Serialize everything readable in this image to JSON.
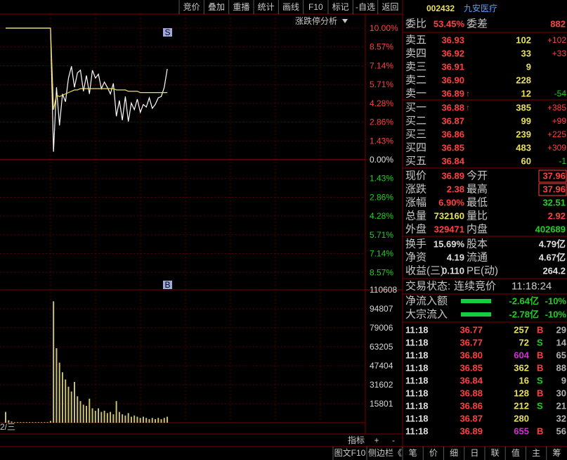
{
  "toolbar": [
    "竞价",
    "叠加",
    "重播",
    "统计",
    "画线",
    "F10",
    "标记",
    "-自选",
    "返回"
  ],
  "chart_data": [
    {
      "type": "line",
      "annotation": "涨跌停分析",
      "marker": "S",
      "ylim": [
        -10,
        10
      ],
      "grid": true,
      "yticks": [
        {
          "value": 10,
          "label": "10.00%"
        },
        {
          "value": 8.57,
          "label": "8.57%"
        },
        {
          "value": 7.14,
          "label": "7.14%"
        },
        {
          "value": 5.71,
          "label": "5.71%"
        },
        {
          "value": 4.28,
          "label": "4.28%"
        },
        {
          "value": 2.86,
          "label": "2.86%"
        },
        {
          "value": 1.43,
          "label": "1.43%"
        },
        {
          "value": 0,
          "label": "0.00%"
        },
        {
          "value": -1.43,
          "label": "1.43%"
        },
        {
          "value": -2.86,
          "label": "2.86%"
        },
        {
          "value": -4.28,
          "label": "4.28%"
        },
        {
          "value": -5.71,
          "label": "5.71%"
        },
        {
          "value": -7.14,
          "label": "7.14%"
        },
        {
          "value": -8.57,
          "label": "8.57%"
        }
      ],
      "series": [
        {
          "color": "#ffffff",
          "values": [
            10,
            10,
            10,
            10,
            10,
            10,
            10,
            10,
            10,
            10,
            10,
            10,
            10,
            10,
            10,
            10,
            0.6,
            5.5,
            2.6,
            5.0,
            4.4,
            6.2,
            7.1,
            5.5,
            6.6,
            6.8,
            5.2,
            6.4,
            5.0,
            6.8,
            6.2,
            6.5,
            5.4,
            5.9,
            5.5,
            5.0,
            5.8,
            3.3,
            4.5,
            3.0,
            4.8,
            2.9,
            4.3,
            3.8,
            4.6,
            3.6,
            4.2,
            4.0,
            4.7,
            3.9,
            4.2,
            4.7,
            4.8,
            5.5,
            6.9
          ]
        },
        {
          "color": "#f0e060",
          "values": [
            10,
            10,
            10,
            10,
            10,
            10,
            10,
            10,
            10,
            10,
            10,
            10,
            10,
            10,
            10,
            10,
            3.8,
            4.9,
            4.8,
            4.9,
            5.0,
            5.1,
            5.2,
            5.3,
            5.3,
            5.4,
            5.4,
            5.4,
            5.4,
            5.4,
            5.4,
            5.4,
            5.4,
            5.4,
            5.4,
            5.4,
            5.4,
            5.3,
            5.3,
            5.3,
            5.3,
            5.2,
            5.2,
            5.2,
            5.2,
            5.1,
            5.1,
            5.1,
            5.1,
            5.1,
            5.1,
            5.1,
            5.1,
            5.1,
            5.1
          ]
        }
      ]
    },
    {
      "type": "bar",
      "marker": "B",
      "xlabel": "2/三",
      "color": "#c8c070",
      "ylim": [
        0,
        110608
      ],
      "grid": true,
      "yticks": [
        110608,
        94807,
        79006,
        63205,
        47404,
        31602,
        15801
      ],
      "values": [
        9000,
        2000,
        1000,
        500,
        500,
        500,
        500,
        500,
        500,
        500,
        500,
        500,
        500,
        500,
        500,
        1500,
        101000,
        62000,
        50000,
        42000,
        36000,
        30000,
        26000,
        34000,
        22000,
        18000,
        15000,
        14000,
        20000,
        12000,
        10000,
        12000,
        9000,
        10000,
        8000,
        9000,
        7000,
        18000,
        9000,
        7000,
        6000,
        8000,
        5000,
        6000,
        5000,
        4000,
        5000,
        4000,
        3000,
        4000,
        3000,
        4000,
        3000,
        4000,
        5000
      ]
    }
  ],
  "quote": {
    "code": "002432",
    "name": "九安医疗",
    "ratio": {
      "label": "委比",
      "value": "53.45%",
      "label2": "委差",
      "value2": "882"
    },
    "asks": [
      {
        "label": "卖五",
        "price": "36.93",
        "volume": "102",
        "change": "+102"
      },
      {
        "label": "卖四",
        "price": "36.92",
        "volume": "33",
        "change": "+33"
      },
      {
        "label": "卖三",
        "price": "36.91",
        "volume": "9"
      },
      {
        "label": "卖二",
        "price": "36.90",
        "volume": "228"
      },
      {
        "label": "卖一",
        "price": "36.89",
        "flag": "↑",
        "volume": "12",
        "change": "-54"
      }
    ],
    "bids": [
      {
        "label": "买一",
        "price": "36.88",
        "flag": "↑",
        "volume": "385",
        "change": "+385"
      },
      {
        "label": "买二",
        "price": "36.87",
        "volume": "99",
        "change": "+99"
      },
      {
        "label": "买三",
        "price": "36.86",
        "volume": "239",
        "change": "+225"
      },
      {
        "label": "买四",
        "price": "36.85",
        "volume": "483",
        "change": "+309"
      },
      {
        "label": "买五",
        "price": "36.84",
        "volume": "60",
        "change": "-1"
      }
    ],
    "stats": [
      [
        {
          "label": "现价",
          "value": "36.89",
          "color": "#ff4040"
        },
        {
          "label": "今开",
          "value": "37.96",
          "color": "#ff4040",
          "boxed": true
        }
      ],
      [
        {
          "label": "涨跌",
          "value": "2.38",
          "color": "#ff4040"
        },
        {
          "label": "最高",
          "value": "37.96",
          "color": "#ff4040",
          "boxed": true
        }
      ],
      [
        {
          "label": "涨幅",
          "value": "6.90%",
          "color": "#ff4040"
        },
        {
          "label": "最低",
          "value": "32.51",
          "color": "#20d020"
        }
      ],
      [
        {
          "label": "总量",
          "value": "732160",
          "color": "#e8e060"
        },
        {
          "label": "量比",
          "value": "2.92",
          "color": "#ff4040"
        }
      ],
      [
        {
          "label": "外盘",
          "value": "329471",
          "color": "#ff4040"
        },
        {
          "label": "内盘",
          "value": "402689",
          "color": "#20d020"
        }
      ]
    ],
    "fundamentals": [
      [
        {
          "label": "换手",
          "value": "15.69%"
        },
        {
          "label": "股本",
          "value": "4.79亿"
        }
      ],
      [
        {
          "label": "净资",
          "value": "4.19"
        },
        {
          "label": "流通",
          "value": "4.67亿"
        }
      ],
      [
        {
          "label": "收益(三)",
          "value": "0.110"
        },
        {
          "label": "PE(动)",
          "value": "264.2"
        }
      ]
    ],
    "status": {
      "label": "交易状态:",
      "value": "连续竞价",
      "time": "11:18:24"
    },
    "flows": [
      {
        "label": "净流入额",
        "value": "-2.64亿",
        "pct": "-10%"
      },
      {
        "label": "大宗流入",
        "value": "-2.78亿",
        "pct": "-10%"
      }
    ],
    "ticks": [
      {
        "time": "11:18",
        "price": "36.77",
        "volume": "257",
        "side": "B",
        "count": "29"
      },
      {
        "time": "11:18",
        "price": "36.77",
        "volume": "72",
        "side": "S",
        "count": "14"
      },
      {
        "time": "11:18",
        "price": "36.80",
        "volume": "604",
        "color": "#d030d0",
        "side": "B",
        "count": "65"
      },
      {
        "time": "11:18",
        "price": "36.85",
        "volume": "362",
        "side": "B",
        "count": "88"
      },
      {
        "time": "11:18",
        "price": "36.84",
        "volume": "16",
        "side": "S",
        "count": "9"
      },
      {
        "time": "11:18",
        "price": "36.88",
        "volume": "128",
        "side": "B",
        "count": "30"
      },
      {
        "time": "11:18",
        "price": "36.86",
        "volume": "212",
        "side": "S",
        "count": "21"
      },
      {
        "time": "11:18",
        "price": "36.87",
        "volume": "280",
        "count": "32"
      },
      {
        "time": "11:18",
        "price": "36.89",
        "volume": "655",
        "color": "#d030d0",
        "side": "B",
        "count": "56"
      }
    ]
  },
  "footer": {
    "chart_tabs": [
      "指标",
      "+",
      "-"
    ],
    "left": [
      "图文F10",
      "侧边栏《"
    ],
    "tabs": [
      "笔",
      "价",
      "细",
      "日",
      "联",
      "值",
      "主",
      "筹"
    ]
  }
}
